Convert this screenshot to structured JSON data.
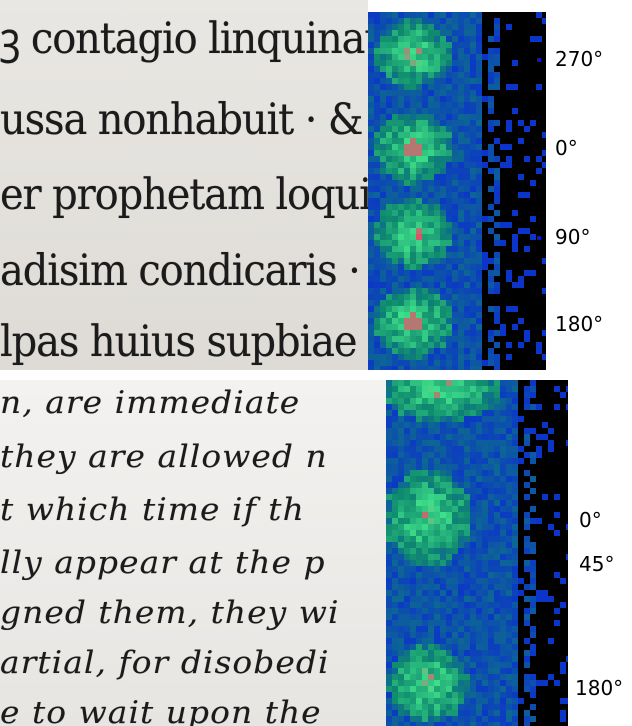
{
  "top_panel": {
    "text_lines": [
      "ꝫ contagio linquinat",
      "ussa nonhabuit · & t",
      "er prophetam loquit",
      "adisim condicaris · du",
      "lpas huius supbiae"
    ],
    "angle_labels": [
      "270°",
      "0°",
      "90°",
      "180°"
    ]
  },
  "bottom_panel": {
    "text_lines": [
      "n, are immediate",
      "they are allowed n",
      "t which time if th",
      "lly appear at the p",
      "gned them, they wi",
      "artial, for disobedi",
      "e to wait upon the"
    ],
    "angle_labels": [
      "0°",
      "45°",
      "180°"
    ]
  },
  "colors": {
    "heatmap_background": "#000000",
    "heatmap_low": "#0a1fe0",
    "heatmap_mid": "#0f8a6e",
    "heatmap_high": "#3fe08a",
    "heatmap_peak": "#e84a66",
    "marker_blue": "#1313d4"
  }
}
